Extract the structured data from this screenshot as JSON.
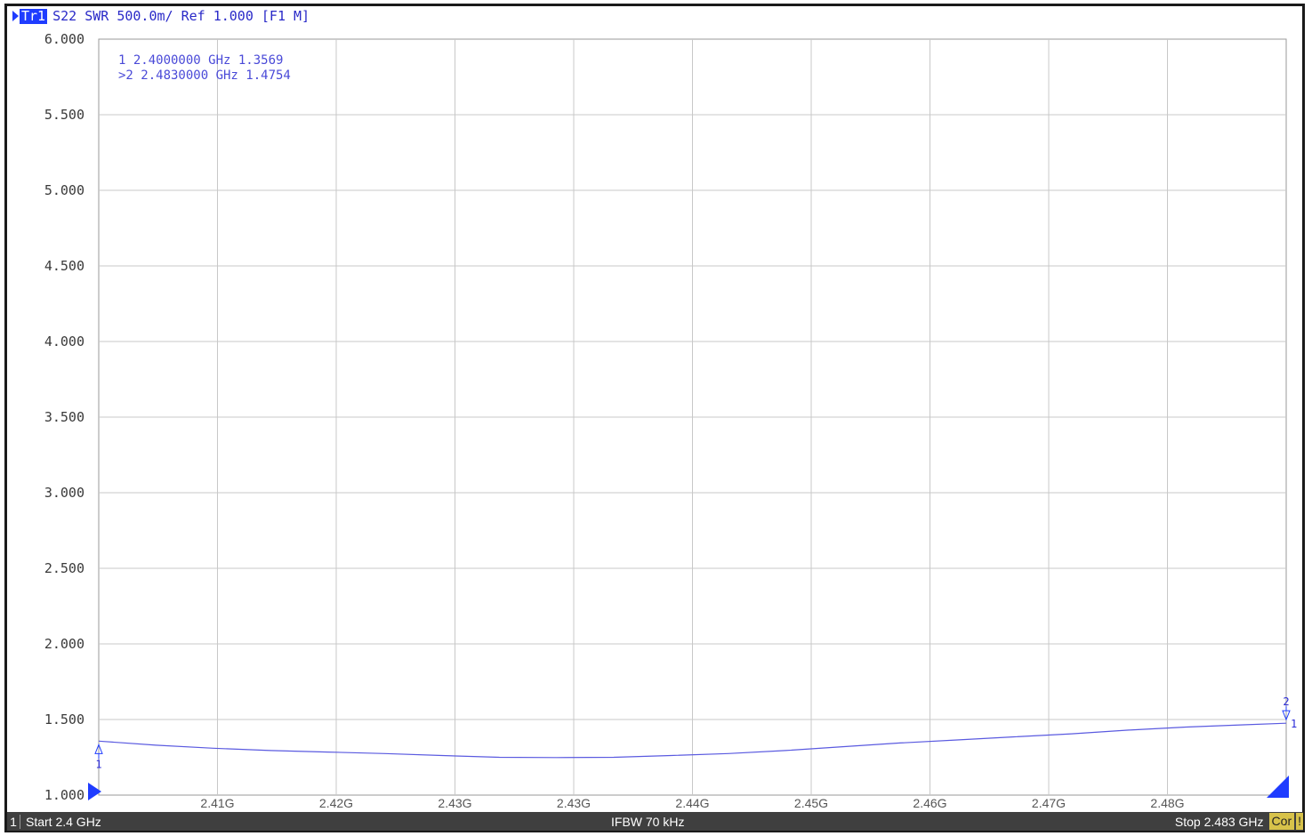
{
  "trace_header": {
    "tag": "Tr1",
    "text": "S22 SWR 500.0m/ Ref 1.000 [F1 M]"
  },
  "chart_data": {
    "type": "line",
    "title": "",
    "parameter": "S22",
    "format": "SWR",
    "scale_per_div": "500.0m",
    "ref_value": 1.0,
    "xlim": [
      2.4,
      2.483
    ],
    "ylim": [
      1.0,
      6.0
    ],
    "grid": true,
    "y_ticks": [
      "1.000",
      "1.500",
      "2.000",
      "2.500",
      "3.000",
      "3.500",
      "4.000",
      "4.500",
      "5.000",
      "5.500",
      "6.000"
    ],
    "x_ticks": [
      {
        "value": 2.4083,
        "label": "2.41G"
      },
      {
        "value": 2.4166,
        "label": "2.42G"
      },
      {
        "value": 2.4249,
        "label": "2.43G"
      },
      {
        "value": 2.4332,
        "label": "2.43G"
      },
      {
        "value": 2.4415,
        "label": "2.44G"
      },
      {
        "value": 2.4498,
        "label": "2.45G"
      },
      {
        "value": 2.4581,
        "label": "2.46G"
      },
      {
        "value": 2.4664,
        "label": "2.47G"
      },
      {
        "value": 2.4747,
        "label": "2.48G"
      }
    ],
    "series": [
      {
        "color": "#5a5ae0",
        "x": [
          2.4,
          2.404,
          2.408,
          2.412,
          2.416,
          2.42,
          2.424,
          2.428,
          2.432,
          2.436,
          2.44,
          2.444,
          2.448,
          2.452,
          2.456,
          2.46,
          2.464,
          2.468,
          2.472,
          2.476,
          2.48,
          2.483
        ],
        "y": [
          1.357,
          1.33,
          1.31,
          1.295,
          1.285,
          1.275,
          1.262,
          1.25,
          1.248,
          1.25,
          1.262,
          1.275,
          1.295,
          1.32,
          1.345,
          1.365,
          1.385,
          1.405,
          1.43,
          1.45,
          1.465,
          1.4754
        ]
      }
    ],
    "markers": [
      {
        "id": "1",
        "prefix": " ",
        "freq": "2.4000000 GHz",
        "value": "1.3569",
        "x": 2.4,
        "y": 1.3569,
        "active": false
      },
      {
        "id": "2",
        "prefix": ">",
        "freq": "2.4830000 GHz",
        "value": "1.4754",
        "x": 2.483,
        "y": 1.4754,
        "active": true
      }
    ]
  },
  "status_bar": {
    "channel": "1",
    "start": "Start 2.4 GHz",
    "ifbw": "IFBW 70 kHz",
    "stop": "Stop 2.483 GHz",
    "cor": "Cor",
    "warn": "!"
  },
  "colors": {
    "trace": "#5a5ae0",
    "grid": "#c8c8c8",
    "marker": "#1f3cff"
  }
}
